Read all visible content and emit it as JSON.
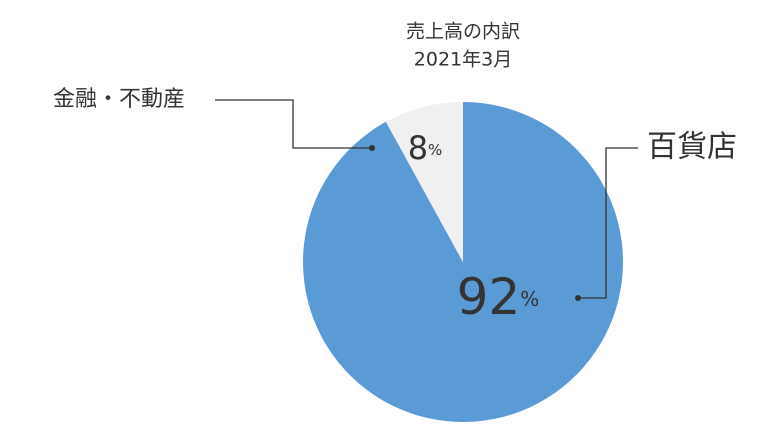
{
  "chart_data": {
    "type": "pie",
    "title": "売上高の内訳",
    "subtitle": "2021年3月",
    "categories": [
      "百貨店",
      "金融・不動産"
    ],
    "values": [
      92,
      8
    ],
    "value_suffix": "%",
    "colors": [
      "#5b9bd5",
      "#f0f0f0"
    ]
  }
}
